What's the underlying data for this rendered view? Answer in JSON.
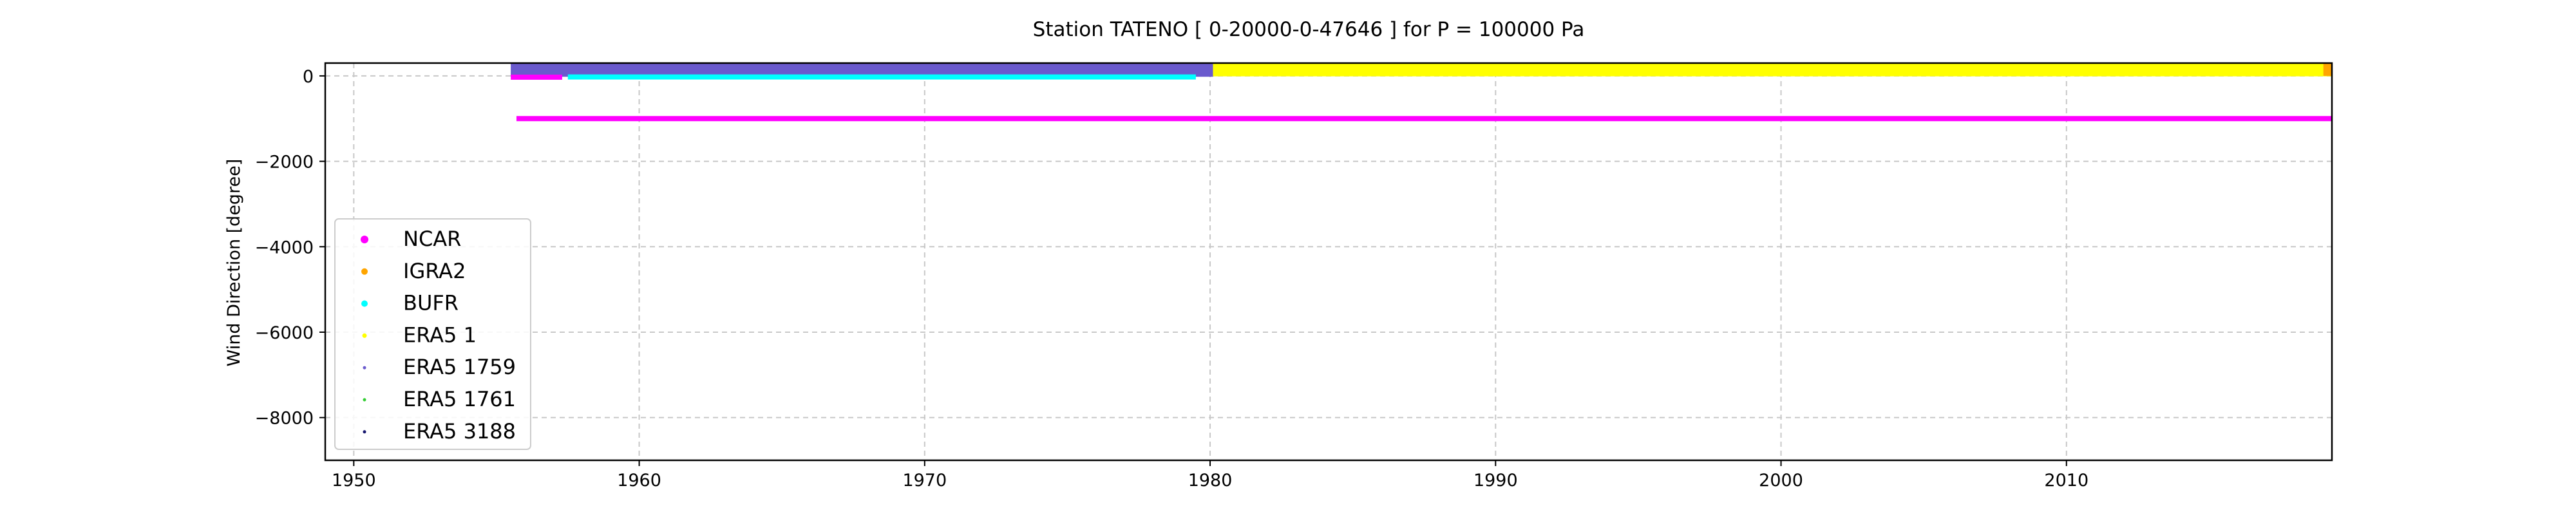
{
  "chart_data": {
    "type": "scatter",
    "title": "Station  TATENO [ 0-20000-0-47646 ]  for P = 100000 Pa",
    "xlabel": "",
    "ylabel": "Wind Direction [degree]",
    "xlim": [
      1949,
      2019.3
    ],
    "ylim": [
      -9000,
      300
    ],
    "xticks": [
      1950,
      1960,
      1970,
      1980,
      1990,
      2000,
      2010
    ],
    "yticks": [
      0,
      -2000,
      -4000,
      -6000,
      -8000
    ],
    "xtick_labels": [
      "1950",
      "1960",
      "1970",
      "1980",
      "1990",
      "2000",
      "2010"
    ],
    "ytick_labels": [
      "0",
      "−2000",
      "−4000",
      "−6000",
      "−8000"
    ],
    "grid": true,
    "legend_position": "lower-left",
    "series": [
      {
        "name": "NCAR",
        "color": "#ff00ff",
        "bands": [
          {
            "x": [
              1955.7,
              2019.3
            ],
            "y": [
              -1020,
              -980
            ]
          },
          {
            "x": [
              1955.5,
              1957.3
            ],
            "y": [
              -60,
              0
            ]
          }
        ]
      },
      {
        "name": "IGRA2",
        "color": "#ffa500",
        "bands": [
          {
            "x": [
              2019.0,
              2019.3
            ],
            "y": [
              0,
              300
            ]
          }
        ]
      },
      {
        "name": "BUFR",
        "color": "#00ffff",
        "bands": [
          {
            "x": [
              1957.5,
              1979.5
            ],
            "y": [
              -50,
              0
            ]
          }
        ]
      },
      {
        "name": "ERA5 1",
        "color": "#ffff00",
        "bands": [
          {
            "x": [
              1980.1,
              2019.3
            ],
            "y": [
              -10,
              300
            ]
          }
        ]
      },
      {
        "name": "ERA5 1759",
        "color": "#6a5acd",
        "bands": [
          {
            "x": [
              1955.5,
              1980.1
            ],
            "y": [
              -20,
              300
            ]
          }
        ]
      },
      {
        "name": "ERA5 1761",
        "color": "#32cd32",
        "bands": []
      },
      {
        "name": "ERA5 3188",
        "color": "#191970",
        "bands": []
      }
    ]
  }
}
